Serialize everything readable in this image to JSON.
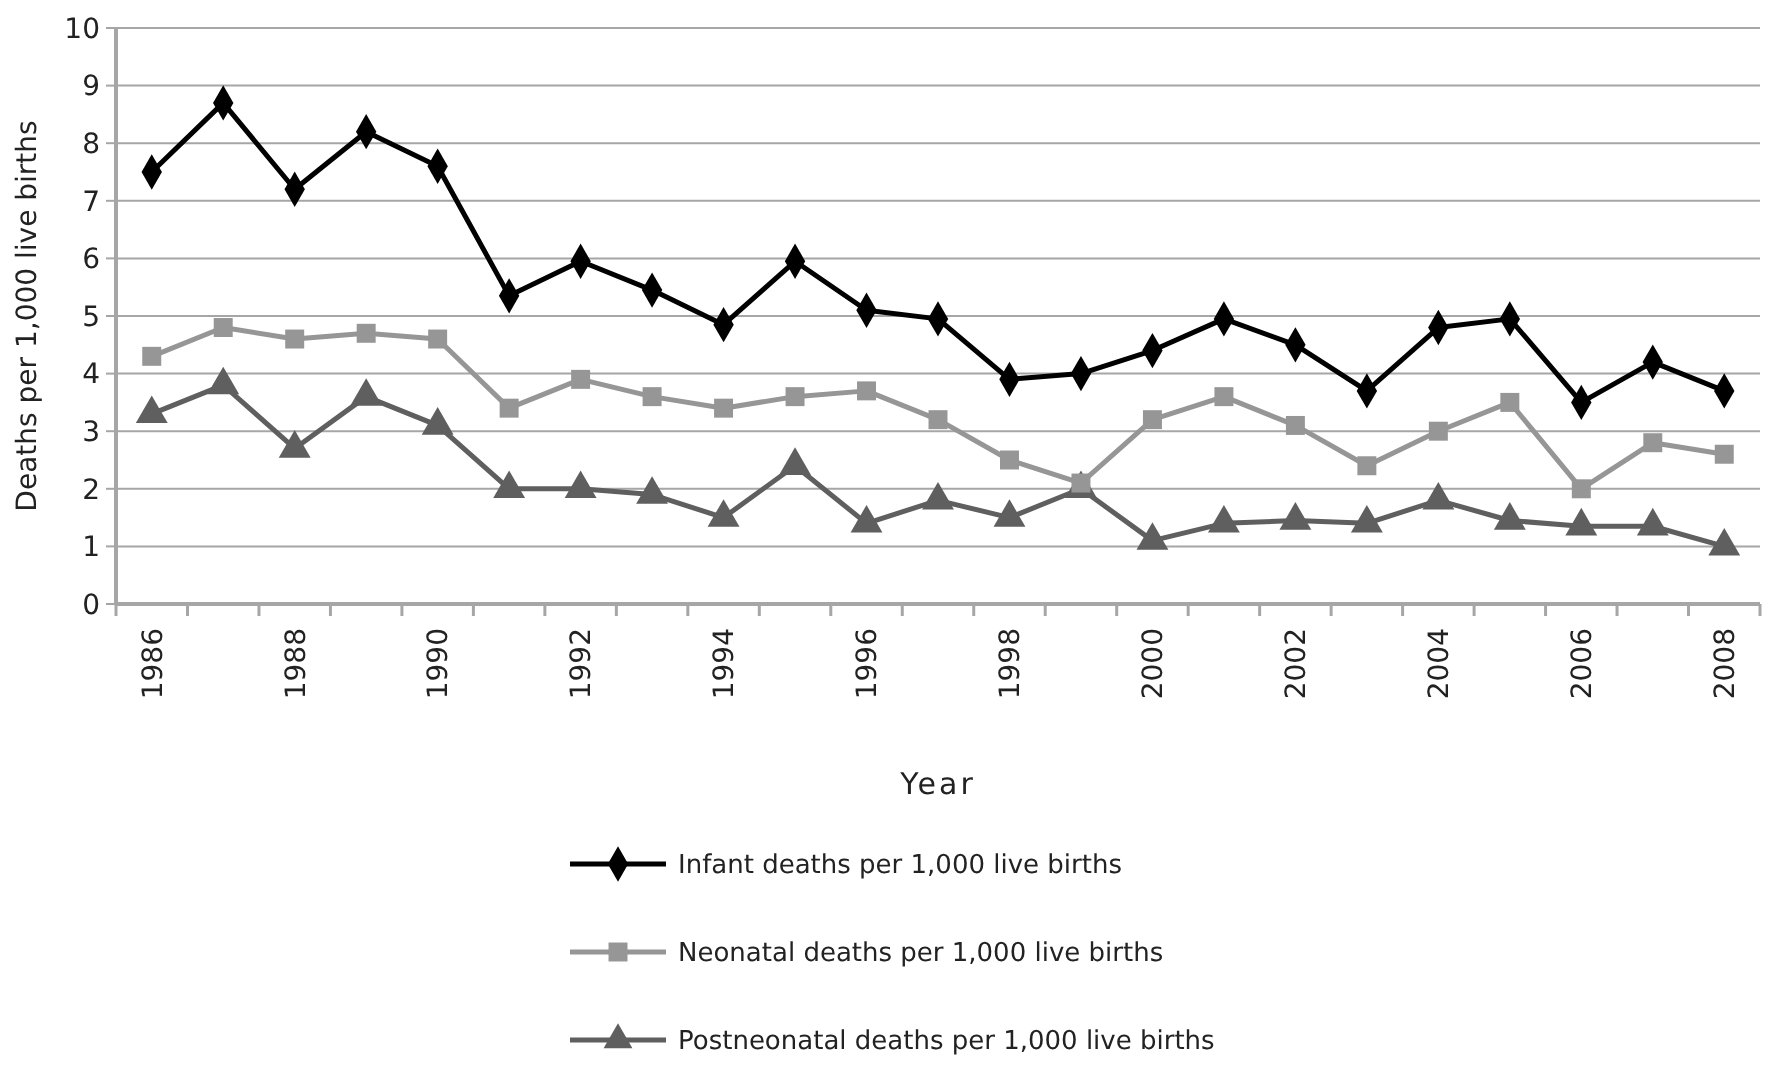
{
  "chart_data": {
    "type": "line",
    "xlabel": "Year",
    "ylabel": "Deaths per 1,000 live births",
    "categories": [
      "1986",
      null,
      "1988",
      null,
      "1990",
      null,
      "1992",
      null,
      "1994",
      null,
      "1996",
      null,
      "1998",
      null,
      "2000",
      null,
      "2002",
      null,
      "2004",
      null,
      "2006",
      null,
      "2008"
    ],
    "ylim": [
      0,
      10
    ],
    "yticks": [
      0,
      1,
      2,
      3,
      4,
      5,
      6,
      7,
      8,
      9,
      10
    ],
    "grid": "y",
    "legend": "bottom",
    "series": [
      {
        "name": "Infant deaths per 1,000 live births",
        "color": "#000000",
        "marker": "diamond",
        "values": [
          7.5,
          8.7,
          7.2,
          8.2,
          7.6,
          5.35,
          5.95,
          5.45,
          4.85,
          5.95,
          5.1,
          4.95,
          3.9,
          4.0,
          4.4,
          4.95,
          4.5,
          3.7,
          4.8,
          4.95,
          3.5,
          4.2,
          3.7
        ]
      },
      {
        "name": "Neonatal deaths per 1,000 live births",
        "color": "#969696",
        "marker": "square",
        "values": [
          4.3,
          4.8,
          4.6,
          4.7,
          4.6,
          3.4,
          3.9,
          3.6,
          3.4,
          3.6,
          3.7,
          3.2,
          2.5,
          2.1,
          3.2,
          3.6,
          3.1,
          2.4,
          3.0,
          3.5,
          2.0,
          2.8,
          2.6
        ]
      },
      {
        "name": "Postneonatal deaths per 1,000 live births",
        "color": "#5f5f5f",
        "marker": "triangle",
        "values": [
          3.3,
          3.8,
          2.7,
          3.6,
          3.1,
          2.0,
          2.0,
          1.9,
          1.5,
          2.4,
          1.4,
          1.8,
          1.5,
          2.0,
          1.1,
          1.4,
          1.45,
          1.4,
          1.8,
          1.45,
          1.35,
          1.35,
          1.0
        ]
      }
    ]
  }
}
